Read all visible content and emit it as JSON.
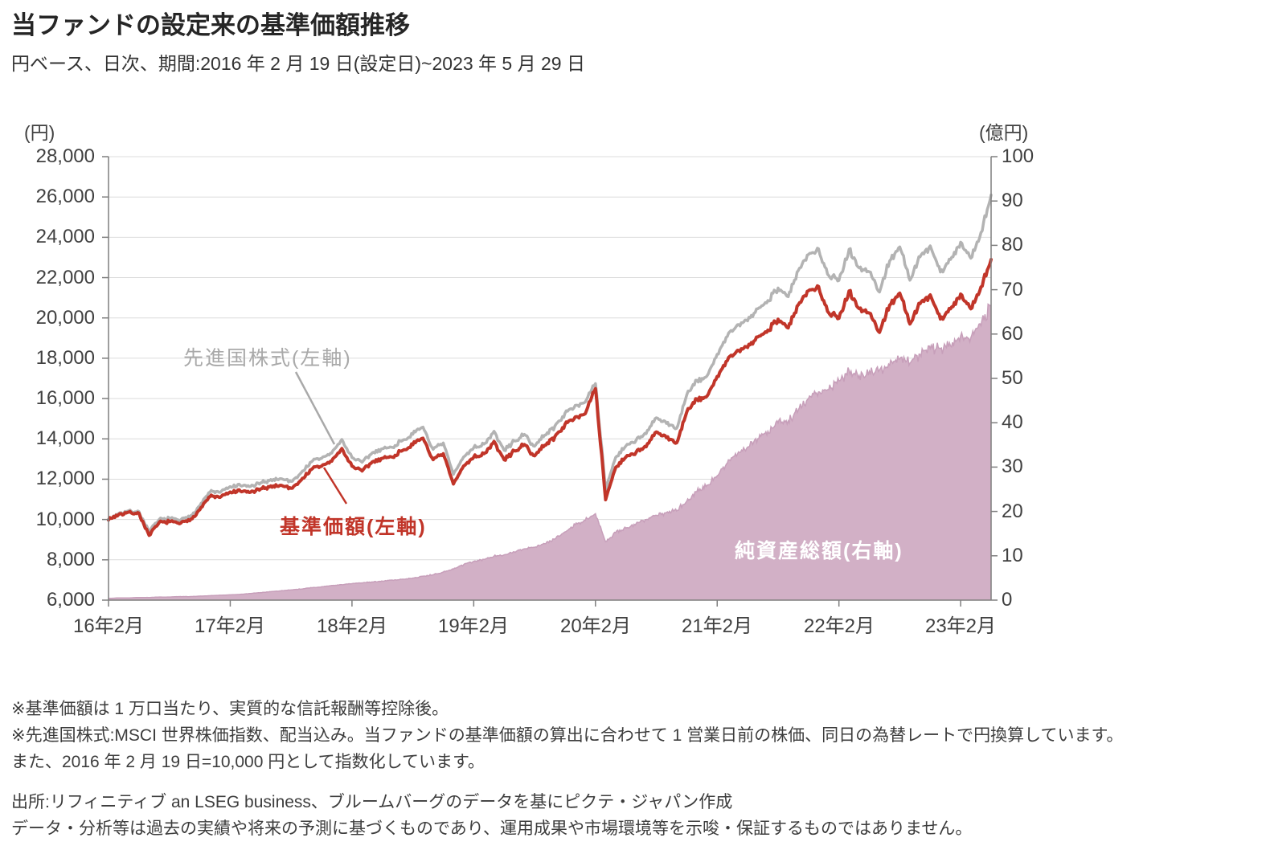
{
  "header": {
    "title": "当ファンドの設定来の基準価額推移",
    "subtitle": "円ベース、日次、期間:2016 年 2 月 19 日(設定日)~2023 年 5 月 29 日"
  },
  "chart_data": {
    "type": "line",
    "note": "values are approximate monthly readings (Feb 2016 - May 2023) taken from the plotted daily curves",
    "x_start": "2016-02",
    "x_end": "2023-05",
    "x_tick_labels": [
      "16年2月",
      "17年2月",
      "18年2月",
      "19年2月",
      "20年2月",
      "21年2月",
      "22年2月",
      "23年2月"
    ],
    "left_axis": {
      "unit_label": "(円)",
      "min": 6000,
      "max": 28000,
      "step": 2000,
      "tick_labels": [
        "28,000",
        "26,000",
        "24,000",
        "22,000",
        "20,000",
        "18,000",
        "16,000",
        "14,000",
        "12,000",
        "10,000",
        "8,000",
        "6,000"
      ]
    },
    "right_axis": {
      "unit_label": "(億円)",
      "min": 0,
      "max": 100,
      "step": 10,
      "tick_labels": [
        "100",
        "90",
        "80",
        "70",
        "60",
        "50",
        "40",
        "30",
        "20",
        "10",
        "0"
      ]
    },
    "grid": true,
    "series": [
      {
        "name": "先進国株式(左軸)",
        "type": "line",
        "axis": "left",
        "color": "#b3b3b3",
        "values": [
          10000,
          10300,
          10420,
          10380,
          9400,
          10000,
          10060,
          9960,
          10130,
          10700,
          11380,
          11350,
          11620,
          11680,
          11640,
          11800,
          11970,
          12030,
          11890,
          12310,
          12880,
          13040,
          13300,
          13950,
          13080,
          12830,
          13300,
          13520,
          13580,
          13950,
          14220,
          14600,
          13460,
          13780,
          12230,
          13100,
          13570,
          13730,
          14350,
          13420,
          13890,
          14200,
          13630,
          14200,
          14620,
          15250,
          15670,
          15830,
          16750,
          11500,
          13100,
          13650,
          13950,
          14250,
          15050,
          14760,
          14520,
          16200,
          16870,
          17100,
          18200,
          19100,
          19620,
          19870,
          20450,
          20870,
          21500,
          21050,
          22350,
          23100,
          23420,
          22100,
          21880,
          23420,
          22470,
          22300,
          21300,
          22850,
          23550,
          21870,
          23020,
          23580,
          22280,
          22900,
          23720,
          22960,
          24250,
          26100
        ]
      },
      {
        "name": "基準価額(左軸)",
        "type": "line",
        "axis": "left",
        "color": "#c13529",
        "values": [
          10000,
          10250,
          10350,
          10300,
          9200,
          9850,
          9900,
          9800,
          9950,
          10500,
          11150,
          11100,
          11350,
          11400,
          11350,
          11500,
          11650,
          11700,
          11550,
          11950,
          12500,
          12650,
          12900,
          13500,
          12650,
          12400,
          12850,
          13050,
          13100,
          13450,
          13700,
          14050,
          12950,
          13250,
          11750,
          12650,
          13100,
          13250,
          13850,
          12950,
          13400,
          13700,
          13150,
          13700,
          14100,
          14700,
          15100,
          15250,
          16500,
          11000,
          12600,
          13100,
          13350,
          13600,
          14350,
          14050,
          13800,
          15350,
          15950,
          16100,
          17100,
          17900,
          18350,
          18550,
          19050,
          19400,
          19950,
          19500,
          20650,
          21300,
          21550,
          20250,
          20000,
          21350,
          20450,
          20250,
          19300,
          20650,
          21250,
          19700,
          20700,
          21150,
          19950,
          20450,
          21150,
          20450,
          21550,
          22900
        ]
      },
      {
        "name": "純資産総額(右軸)",
        "type": "area",
        "axis": "right",
        "color": "#d2b0c6",
        "edge_color": "#c79fba",
        "values": [
          0.4,
          0.5,
          0.5,
          0.6,
          0.6,
          0.7,
          0.7,
          0.8,
          0.8,
          0.9,
          1.0,
          1.1,
          1.2,
          1.3,
          1.5,
          1.7,
          1.9,
          2.1,
          2.3,
          2.5,
          2.8,
          3.0,
          3.3,
          3.5,
          3.7,
          3.9,
          4.1,
          4.3,
          4.5,
          4.7,
          5.0,
          5.4,
          5.7,
          6.3,
          7.0,
          8.0,
          8.7,
          9.2,
          9.9,
          10.2,
          10.9,
          11.6,
          11.9,
          12.8,
          13.8,
          15.3,
          17.0,
          18.0,
          19.5,
          13.2,
          15.2,
          16.2,
          17.2,
          18.2,
          19.2,
          19.7,
          20.2,
          22.4,
          24.5,
          26.0,
          28.0,
          31.0,
          33.0,
          34.5,
          36.5,
          38.0,
          40.0,
          40.5,
          43.0,
          45.5,
          47.0,
          47.5,
          49.5,
          51.5,
          50.5,
          51.5,
          52.0,
          53.0,
          54.5,
          53.5,
          55.5,
          57.0,
          56.5,
          57.5,
          59.5,
          59.0,
          62.0,
          66.5
        ]
      }
    ],
    "annotations": {
      "gray": {
        "text": "先進国株式(左軸)"
      },
      "red": {
        "text": "基準価額(左軸)"
      },
      "area": {
        "text": "純資産総額(右軸)"
      }
    }
  },
  "footnotes": [
    "※基準価額は 1 万口当たり、実質的な信託報酬等控除後。",
    "※先進国株式:MSCI 世界株価指数、配当込み。当ファンドの基準価額の算出に合わせて 1 営業日前の株価、同日の為替レートで円換算しています。",
    "また、2016 年 2 月 19 日=10,000 円として指数化しています。"
  ],
  "source": [
    "出所:リフィニティブ  an LSEG business、ブルームバーグのデータを基にピクテ・ジャパン作成",
    "データ・分析等は過去の実績や将来の予測に基づくものであり、運用成果や市場環境等を示唆・保証するものではありません。"
  ]
}
